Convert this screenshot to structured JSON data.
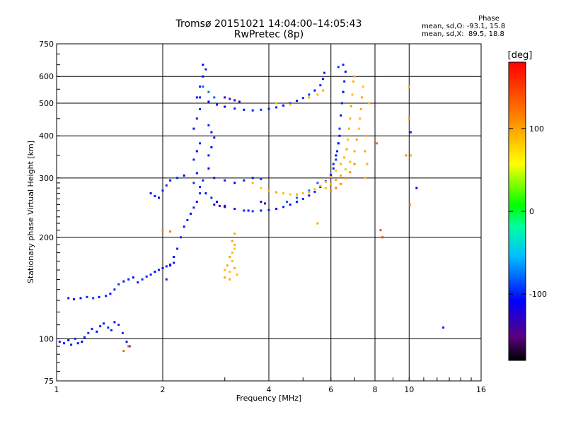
{
  "chart_data": {
    "type": "scatter",
    "title": "Tromsø 20151021 14:04:00–14:05:43",
    "subtitle": "RwPretec (8p)",
    "xlabel": "Frequency [MHz]",
    "ylabel": "Stationary phase Virtual Height [km]",
    "x_scale": "log",
    "y_scale": "log",
    "xlim": [
      1,
      16
    ],
    "ylim": [
      75,
      750
    ],
    "x_ticks": [
      1,
      2,
      4,
      6,
      8,
      10,
      16
    ],
    "x_ticklabels": [
      "1",
      "2",
      "4",
      "6",
      "8",
      "10",
      "16"
    ],
    "y_ticks": [
      75,
      100,
      200,
      300,
      400,
      500,
      600,
      750
    ],
    "y_ticklabels": [
      "75",
      "100",
      "200",
      "300",
      "400",
      "500",
      "600",
      "750"
    ],
    "grid": true,
    "colorbar": {
      "label": "[deg]",
      "range": [
        -180,
        180
      ],
      "ticks": [
        -100,
        0,
        100
      ],
      "ticklabels": [
        "-100",
        "0",
        "100"
      ]
    },
    "stats": {
      "heading": "Phase",
      "line_o": "mean, sd,O: -93.1, 15.8",
      "line_x": "mean, sd,X:  89.5, 18.8"
    },
    "series": [
      {
        "points": [
          [
            1.02,
            98,
            -100
          ],
          [
            1.05,
            97,
            -105
          ],
          [
            1.08,
            99,
            -110
          ],
          [
            1.1,
            96,
            -100
          ],
          [
            1.13,
            100,
            -95
          ],
          [
            1.15,
            97,
            -105
          ],
          [
            1.18,
            98,
            -110
          ],
          [
            1.2,
            101,
            -100
          ],
          [
            1.23,
            104,
            -95
          ],
          [
            1.26,
            107,
            -100
          ],
          [
            1.3,
            105,
            -110
          ],
          [
            1.33,
            109,
            -100
          ],
          [
            1.36,
            111,
            -105
          ],
          [
            1.4,
            108,
            -95
          ],
          [
            1.43,
            106,
            -100
          ],
          [
            1.46,
            112,
            -110
          ],
          [
            1.5,
            110,
            -100
          ],
          [
            1.54,
            104,
            -95
          ],
          [
            1.58,
            98,
            -105
          ],
          [
            1.61,
            95,
            -110
          ],
          [
            1.08,
            132,
            -100
          ],
          [
            1.12,
            131,
            -105
          ],
          [
            1.17,
            132,
            -110
          ],
          [
            1.22,
            133,
            -100
          ],
          [
            1.27,
            132,
            -95
          ],
          [
            1.32,
            133,
            -105
          ],
          [
            1.38,
            134,
            -100
          ],
          [
            1.42,
            136,
            -110
          ],
          [
            1.46,
            140,
            -100
          ],
          [
            1.5,
            145,
            -95
          ],
          [
            1.55,
            148,
            -105
          ],
          [
            1.6,
            150,
            -100
          ],
          [
            1.65,
            152,
            -110
          ],
          [
            1.7,
            147,
            -100
          ],
          [
            1.75,
            150,
            -95
          ],
          [
            1.8,
            153,
            -105
          ],
          [
            1.85,
            155,
            -100
          ],
          [
            1.9,
            158,
            -110
          ],
          [
            1.95,
            160,
            -100
          ],
          [
            2.0,
            162,
            -105
          ],
          [
            2.05,
            164,
            -100
          ],
          [
            2.1,
            166,
            -95
          ],
          [
            2.15,
            168,
            -105
          ],
          [
            2.05,
            150,
            -100
          ],
          [
            2.1,
            165,
            -105
          ],
          [
            2.15,
            175,
            -110
          ],
          [
            2.2,
            185,
            -100
          ],
          [
            2.25,
            200,
            -95
          ],
          [
            2.3,
            215,
            -105
          ],
          [
            2.35,
            225,
            -100
          ],
          [
            2.4,
            235,
            -110
          ],
          [
            2.45,
            245,
            -100
          ],
          [
            2.5,
            255,
            -105
          ],
          [
            2.55,
            270,
            -100
          ],
          [
            2.45,
            290,
            -95
          ],
          [
            2.5,
            310,
            -105
          ],
          [
            2.45,
            340,
            -100
          ],
          [
            2.5,
            360,
            -110
          ],
          [
            2.55,
            380,
            -100
          ],
          [
            2.45,
            420,
            -105
          ],
          [
            2.5,
            450,
            -100
          ],
          [
            2.55,
            480,
            -95
          ],
          [
            2.5,
            520,
            -105
          ],
          [
            2.55,
            560,
            -100
          ],
          [
            2.6,
            600,
            -110
          ],
          [
            2.65,
            630,
            -100
          ],
          [
            2.6,
            650,
            -105
          ],
          [
            1.85,
            270,
            -110
          ],
          [
            1.9,
            265,
            -100
          ],
          [
            1.95,
            262,
            -105
          ],
          [
            2.0,
            275,
            -100
          ],
          [
            2.05,
            285,
            -95
          ],
          [
            2.1,
            295,
            -105
          ],
          [
            2.2,
            300,
            -100
          ],
          [
            2.3,
            305,
            -110
          ],
          [
            2.55,
            282,
            -100
          ],
          [
            2.65,
            270,
            -105
          ],
          [
            2.75,
            262,
            -100
          ],
          [
            2.85,
            255,
            -110
          ],
          [
            3.0,
            248,
            -100
          ],
          [
            3.2,
            243,
            -105
          ],
          [
            3.4,
            240,
            -100
          ],
          [
            3.6,
            239,
            -95
          ],
          [
            3.8,
            240,
            -105
          ],
          [
            4.0,
            241,
            -100
          ],
          [
            4.2,
            243,
            -110
          ],
          [
            4.4,
            246,
            -100
          ],
          [
            4.6,
            250,
            -105
          ],
          [
            4.8,
            255,
            -100
          ],
          [
            5.0,
            260,
            -95
          ],
          [
            5.2,
            266,
            -105
          ],
          [
            5.4,
            273,
            -100
          ],
          [
            5.6,
            282,
            -110
          ],
          [
            5.8,
            293,
            -100
          ],
          [
            6.0,
            306,
            -105
          ],
          [
            6.1,
            320,
            -100
          ],
          [
            6.2,
            340,
            -95
          ],
          [
            6.25,
            360,
            -105
          ],
          [
            6.3,
            380,
            -100
          ],
          [
            6.35,
            400,
            -110
          ],
          [
            2.6,
            295,
            -100
          ],
          [
            2.8,
            300,
            -105
          ],
          [
            3.0,
            295,
            -100
          ],
          [
            3.2,
            290,
            -110
          ],
          [
            3.4,
            295,
            -100
          ],
          [
            3.6,
            300,
            -105
          ],
          [
            3.8,
            298,
            -100
          ],
          [
            2.55,
            520,
            -100
          ],
          [
            2.7,
            505,
            -105
          ],
          [
            2.85,
            495,
            -100
          ],
          [
            3.0,
            488,
            -110
          ],
          [
            3.2,
            482,
            -100
          ],
          [
            3.4,
            478,
            -105
          ],
          [
            3.6,
            476,
            -100
          ],
          [
            3.8,
            478,
            -95
          ],
          [
            4.0,
            481,
            -105
          ],
          [
            4.2,
            486,
            -100
          ],
          [
            4.4,
            492,
            -110
          ],
          [
            4.6,
            500,
            -100
          ],
          [
            4.8,
            508,
            -105
          ],
          [
            5.0,
            518,
            -100
          ],
          [
            5.2,
            530,
            -95
          ],
          [
            5.4,
            545,
            -105
          ],
          [
            5.6,
            565,
            -100
          ],
          [
            5.7,
            590,
            -110
          ],
          [
            5.75,
            615,
            -100
          ],
          [
            3.0,
            520,
            -130
          ],
          [
            3.1,
            515,
            -135
          ],
          [
            3.2,
            510,
            -130
          ],
          [
            3.3,
            505,
            -135
          ],
          [
            2.8,
            250,
            -130
          ],
          [
            2.9,
            248,
            -135
          ],
          [
            3.0,
            246,
            -130
          ],
          [
            3.5,
            240,
            -135
          ],
          [
            3.8,
            255,
            -130
          ],
          [
            3.9,
            252,
            -135
          ],
          [
            2.7,
            430,
            -100
          ],
          [
            2.75,
            410,
            -105
          ],
          [
            2.8,
            395,
            -100
          ],
          [
            2.75,
            370,
            -110
          ],
          [
            2.7,
            350,
            -100
          ],
          [
            2.7,
            320,
            -105
          ],
          [
            6.1,
            330,
            -100
          ],
          [
            6.2,
            350,
            -105
          ],
          [
            6.3,
            380,
            -100
          ],
          [
            6.35,
            420,
            -95
          ],
          [
            6.4,
            460,
            -105
          ],
          [
            6.45,
            500,
            -100
          ],
          [
            6.5,
            540,
            -110
          ],
          [
            6.55,
            580,
            -100
          ],
          [
            6.6,
            620,
            -105
          ],
          [
            6.5,
            650,
            -100
          ],
          [
            6.3,
            640,
            -95
          ],
          [
            2.6,
            560,
            -80
          ],
          [
            2.7,
            540,
            -75
          ],
          [
            2.8,
            520,
            -80
          ],
          [
            4.5,
            255,
            -80
          ],
          [
            4.8,
            262,
            -75
          ],
          [
            5.2,
            275,
            -80
          ],
          [
            5.5,
            290,
            -75
          ],
          [
            10.1,
            410,
            -100
          ],
          [
            10.5,
            280,
            -110
          ],
          [
            12.5,
            108,
            -100
          ]
        ]
      },
      {
        "points": [
          [
            3.0,
            160,
            90
          ],
          [
            3.05,
            165,
            95
          ],
          [
            3.1,
            158,
            85
          ],
          [
            3.15,
            170,
            90
          ],
          [
            3.2,
            162,
            95
          ],
          [
            3.1,
            175,
            100
          ],
          [
            3.15,
            180,
            90
          ],
          [
            3.2,
            185,
            85
          ],
          [
            3.2,
            190,
            95
          ],
          [
            3.25,
            155,
            90
          ],
          [
            3.0,
            152,
            100
          ],
          [
            3.1,
            150,
            95
          ],
          [
            3.6,
            290,
            90
          ],
          [
            3.8,
            280,
            85
          ],
          [
            4.0,
            275,
            95
          ],
          [
            4.2,
            272,
            100
          ],
          [
            4.4,
            270,
            90
          ],
          [
            4.6,
            268,
            85
          ],
          [
            4.8,
            268,
            95
          ],
          [
            5.0,
            270,
            90
          ],
          [
            5.2,
            273,
            100
          ],
          [
            5.4,
            278,
            85
          ],
          [
            5.6,
            284,
            95
          ],
          [
            5.8,
            292,
            90
          ],
          [
            6.0,
            302,
            100
          ],
          [
            6.2,
            315,
            85
          ],
          [
            6.4,
            330,
            95
          ],
          [
            6.55,
            345,
            90
          ],
          [
            6.65,
            365,
            100
          ],
          [
            6.7,
            390,
            85
          ],
          [
            6.75,
            420,
            95
          ],
          [
            6.8,
            450,
            90
          ],
          [
            6.85,
            490,
            100
          ],
          [
            6.9,
            530,
            85
          ],
          [
            6.95,
            580,
            95
          ],
          [
            7.0,
            600,
            90
          ],
          [
            5.8,
            280,
            85
          ],
          [
            6.0,
            288,
            90
          ],
          [
            6.2,
            296,
            95
          ],
          [
            6.4,
            305,
            100
          ],
          [
            6.6,
            318,
            85
          ],
          [
            6.8,
            335,
            90
          ],
          [
            7.0,
            360,
            95
          ],
          [
            7.1,
            390,
            100
          ],
          [
            7.2,
            420,
            85
          ],
          [
            7.25,
            450,
            90
          ],
          [
            7.3,
            480,
            95
          ],
          [
            7.35,
            520,
            100
          ],
          [
            7.4,
            560,
            85
          ],
          [
            6.0,
            275,
            110
          ],
          [
            6.2,
            280,
            115
          ],
          [
            6.4,
            288,
            110
          ],
          [
            6.6,
            300,
            115
          ],
          [
            6.8,
            312,
            110
          ],
          [
            7.0,
            330,
            115
          ],
          [
            4.2,
            500,
            90
          ],
          [
            4.6,
            495,
            85
          ],
          [
            5.2,
            520,
            95
          ],
          [
            5.5,
            530,
            90
          ],
          [
            5.7,
            545,
            95
          ],
          [
            5.5,
            220,
            100
          ],
          [
            7.5,
            300,
            90
          ],
          [
            7.6,
            330,
            95
          ],
          [
            7.5,
            360,
            100
          ],
          [
            7.6,
            400,
            95
          ],
          [
            7.7,
            500,
            90
          ],
          [
            10.0,
            560,
            90
          ],
          [
            10.0,
            450,
            100
          ],
          [
            10.1,
            350,
            95
          ],
          [
            9.8,
            350,
            110
          ],
          [
            10.05,
            250,
            120
          ],
          [
            8.1,
            380,
            130
          ],
          [
            8.3,
            210,
            140
          ],
          [
            8.4,
            200,
            150
          ],
          [
            3.2,
            205,
            95
          ],
          [
            3.15,
            195,
            100
          ],
          [
            1.55,
            92,
            130
          ],
          [
            1.6,
            95,
            140
          ],
          [
            2.0,
            210,
            110
          ],
          [
            2.1,
            208,
            120
          ]
        ]
      }
    ]
  }
}
